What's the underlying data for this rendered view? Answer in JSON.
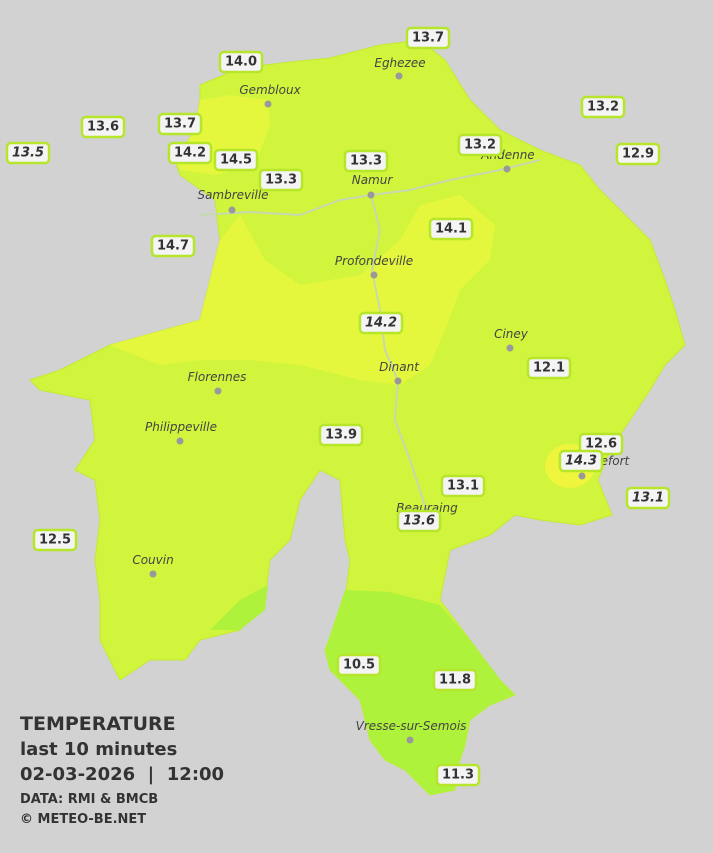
{
  "stations": [
    "13.7",
    "14.0",
    "13.2",
    "13.6",
    "13.7",
    "13.5",
    "14.2",
    "14.5",
    "13.3",
    "13.2",
    "12.9",
    "13.3",
    "14.1",
    "14.7",
    "14.2",
    "12.1",
    "13.9",
    "12.6",
    "14.3",
    "13.1",
    "13.1",
    "13.6",
    "12.5",
    "10.5",
    "11.8",
    "11.3"
  ],
  "places": [
    "Eghezee",
    "Gembloux",
    "Andenne",
    "Namur",
    "Sambreville",
    "Profondeville",
    "Ciney",
    "Florennes",
    "Dinant",
    "Philippeville",
    "Rochefort",
    "Beauraing",
    "Couvin",
    "Vresse-sur-Semois"
  ],
  "legend": {
    "title": "TEMPERATURE",
    "subtitle": "last 10 minutes",
    "datetime": "02-03-2026  |  12:00",
    "source": "DATA: RMI & BMCB",
    "credit": "© METEO-BE.NET"
  }
}
